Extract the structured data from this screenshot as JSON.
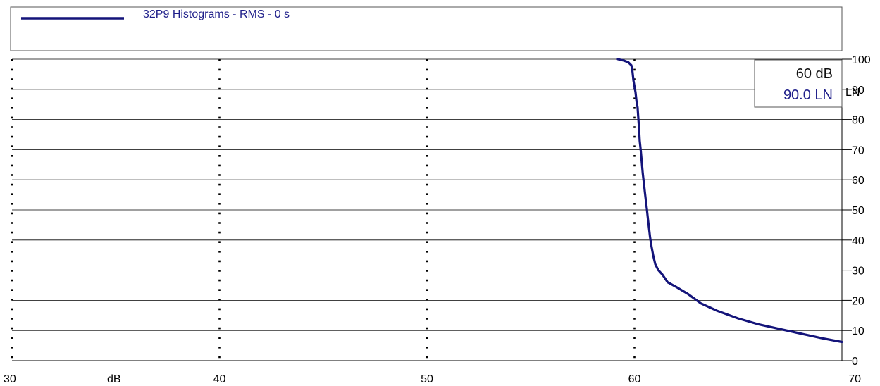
{
  "colors": {
    "series": "#14147a",
    "legend_text": "#1f1f8a",
    "grid": "#000000",
    "background": "#ffffff"
  },
  "legend": {
    "label": "32P9 Histograms - RMS - 0 s"
  },
  "cursor_readout": {
    "db": "60 dB",
    "ln": "90.0 LN"
  },
  "chart_data": {
    "type": "line",
    "title": "",
    "legend_position": "top",
    "xlabel": "dB",
    "ylabel": "LN",
    "xlim": [
      30,
      70
    ],
    "ylim": [
      0,
      100
    ],
    "x_ticks": [
      30,
      40,
      50,
      60,
      70
    ],
    "y_ticks": [
      0,
      10,
      20,
      30,
      40,
      50,
      60,
      70,
      80,
      90,
      100
    ],
    "vertical_grid": "dotted",
    "horizontal_grid": "solid",
    "series": [
      {
        "name": "32P9 Histograms - RMS - 0 s",
        "points": [
          [
            59.2,
            100
          ],
          [
            59.5,
            99.5
          ],
          [
            59.7,
            99
          ],
          [
            59.85,
            98
          ],
          [
            59.9,
            96
          ],
          [
            59.95,
            93
          ],
          [
            60.0,
            91
          ],
          [
            60.05,
            89
          ],
          [
            60.1,
            86
          ],
          [
            60.15,
            84
          ],
          [
            60.18,
            81
          ],
          [
            60.22,
            77
          ],
          [
            60.25,
            73
          ],
          [
            60.3,
            70
          ],
          [
            60.35,
            66
          ],
          [
            60.4,
            62
          ],
          [
            60.45,
            59
          ],
          [
            60.5,
            56
          ],
          [
            60.55,
            53
          ],
          [
            60.6,
            50
          ],
          [
            60.65,
            47
          ],
          [
            60.7,
            44
          ],
          [
            60.75,
            41
          ],
          [
            60.82,
            38
          ],
          [
            60.9,
            35
          ],
          [
            61.0,
            32
          ],
          [
            61.15,
            30
          ],
          [
            61.35,
            28.5
          ],
          [
            61.6,
            26
          ],
          [
            62.0,
            24.5
          ],
          [
            62.6,
            22
          ],
          [
            63.2,
            19
          ],
          [
            64.0,
            16.5
          ],
          [
            65.0,
            14
          ],
          [
            66.0,
            12
          ],
          [
            67.0,
            10.5
          ],
          [
            68.0,
            9
          ],
          [
            69.0,
            7.5
          ],
          [
            70.0,
            6.2
          ]
        ]
      }
    ]
  }
}
